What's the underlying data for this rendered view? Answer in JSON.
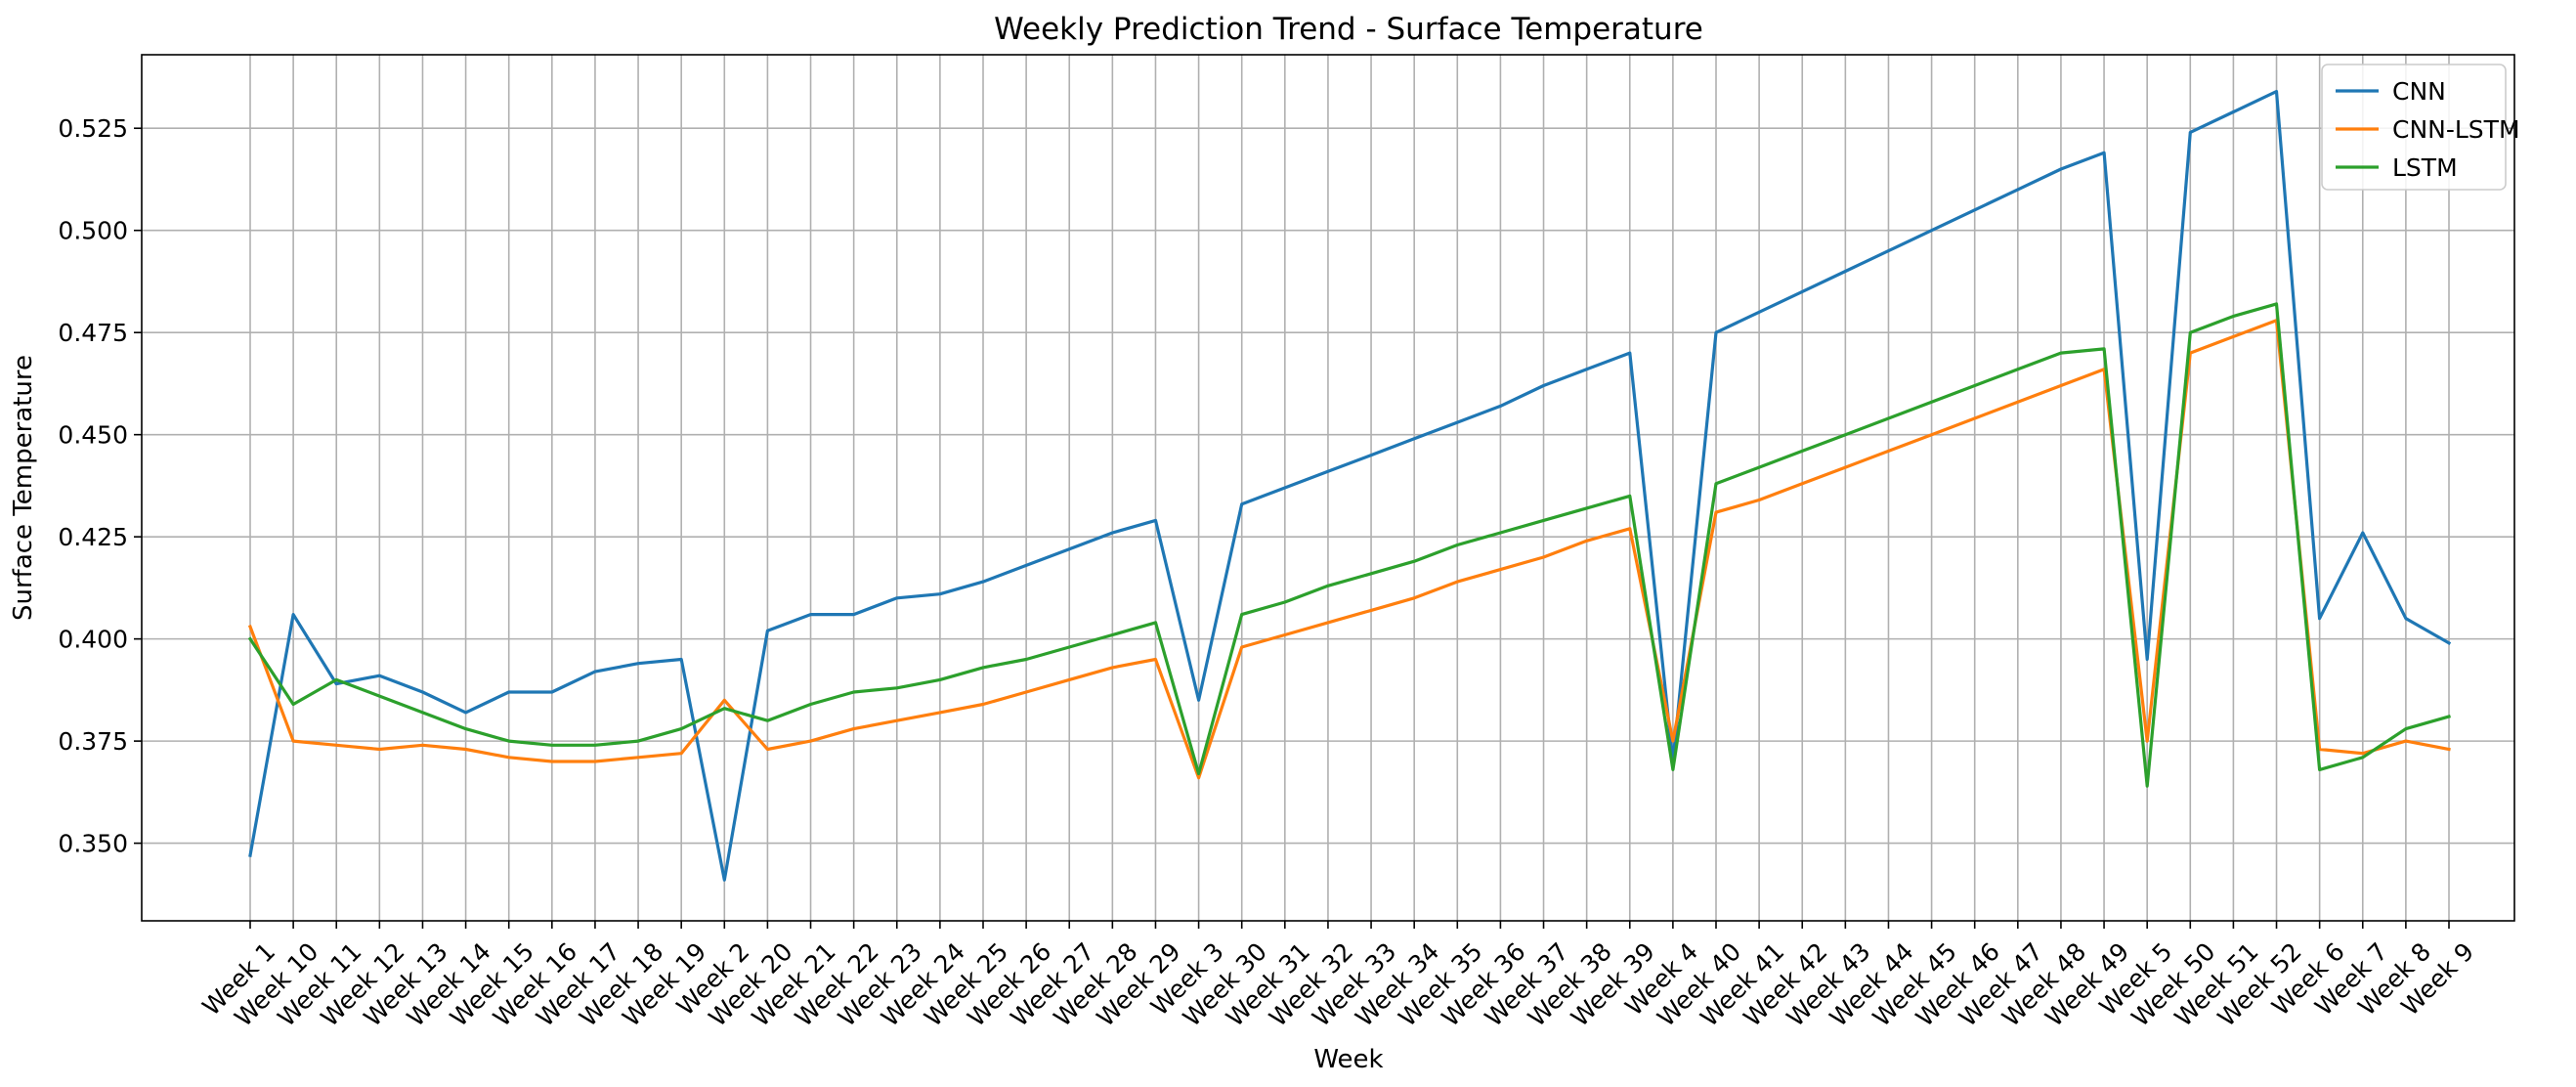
{
  "chart_data": {
    "type": "line",
    "title": "Weekly Prediction Trend - Surface Temperature",
    "xlabel": "Week",
    "ylabel": "Surface Temperature",
    "ylim": [
      0.331,
      0.543
    ],
    "yticks": [
      0.35,
      0.375,
      0.4,
      0.425,
      0.45,
      0.475,
      0.5,
      0.525
    ],
    "ytick_labels": [
      "0.350",
      "0.375",
      "0.400",
      "0.425",
      "0.450",
      "0.475",
      "0.500",
      "0.525"
    ],
    "grid": true,
    "legend_position": "top-right",
    "categories": [
      "Week 1",
      "Week 10",
      "Week 11",
      "Week 12",
      "Week 13",
      "Week 14",
      "Week 15",
      "Week 16",
      "Week 17",
      "Week 18",
      "Week 19",
      "Week 2",
      "Week 20",
      "Week 21",
      "Week 22",
      "Week 23",
      "Week 24",
      "Week 25",
      "Week 26",
      "Week 27",
      "Week 28",
      "Week 29",
      "Week 3",
      "Week 30",
      "Week 31",
      "Week 32",
      "Week 33",
      "Week 34",
      "Week 35",
      "Week 36",
      "Week 37",
      "Week 38",
      "Week 39",
      "Week 4",
      "Week 40",
      "Week 41",
      "Week 42",
      "Week 43",
      "Week 44",
      "Week 45",
      "Week 46",
      "Week 47",
      "Week 48",
      "Week 49",
      "Week 5",
      "Week 50",
      "Week 51",
      "Week 52",
      "Week 6",
      "Week 7",
      "Week 8",
      "Week 9"
    ],
    "series": [
      {
        "name": "CNN",
        "color": "#1f77b4",
        "values": [
          0.347,
          0.406,
          0.389,
          0.391,
          0.387,
          0.382,
          0.387,
          0.387,
          0.392,
          0.394,
          0.395,
          0.341,
          0.402,
          0.406,
          0.406,
          0.41,
          0.411,
          0.414,
          0.418,
          0.422,
          0.426,
          0.429,
          0.385,
          0.433,
          0.437,
          0.441,
          0.445,
          0.449,
          0.453,
          0.457,
          0.462,
          0.466,
          0.47,
          0.37,
          0.475,
          0.48,
          0.485,
          0.49,
          0.495,
          0.5,
          0.505,
          0.51,
          0.515,
          0.519,
          0.395,
          0.524,
          0.529,
          0.534,
          0.405,
          0.426,
          0.405,
          0.399
        ]
      },
      {
        "name": "CNN-LSTM",
        "color": "#ff7f0e",
        "values": [
          0.403,
          0.375,
          0.374,
          0.373,
          0.374,
          0.373,
          0.371,
          0.37,
          0.37,
          0.371,
          0.372,
          0.385,
          0.373,
          0.375,
          0.378,
          0.38,
          0.382,
          0.384,
          0.387,
          0.39,
          0.393,
          0.395,
          0.366,
          0.398,
          0.401,
          0.404,
          0.407,
          0.41,
          0.414,
          0.417,
          0.42,
          0.424,
          0.427,
          0.375,
          0.431,
          0.434,
          0.438,
          0.442,
          0.446,
          0.45,
          0.454,
          0.458,
          0.462,
          0.466,
          0.375,
          0.47,
          0.474,
          0.478,
          0.373,
          0.372,
          0.375,
          0.373
        ]
      },
      {
        "name": "LSTM",
        "color": "#2ca02c",
        "values": [
          0.4,
          0.384,
          0.39,
          0.386,
          0.382,
          0.378,
          0.375,
          0.374,
          0.374,
          0.375,
          0.378,
          0.383,
          0.38,
          0.384,
          0.387,
          0.388,
          0.39,
          0.393,
          0.395,
          0.398,
          0.401,
          0.404,
          0.367,
          0.406,
          0.409,
          0.413,
          0.416,
          0.419,
          0.423,
          0.426,
          0.429,
          0.432,
          0.435,
          0.368,
          0.438,
          0.442,
          0.446,
          0.45,
          0.454,
          0.458,
          0.462,
          0.466,
          0.47,
          0.471,
          0.364,
          0.475,
          0.479,
          0.482,
          0.368,
          0.371,
          0.378,
          0.381
        ]
      }
    ]
  }
}
